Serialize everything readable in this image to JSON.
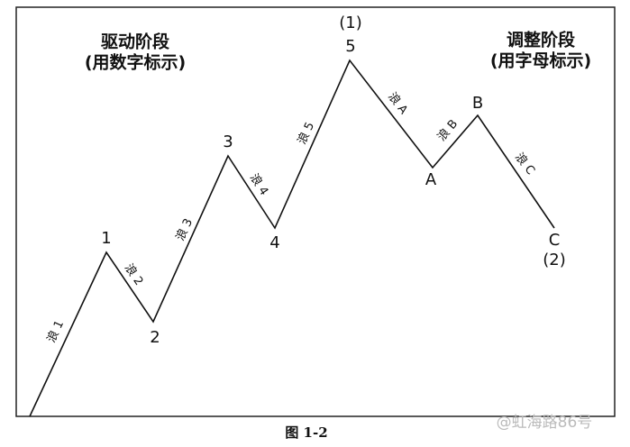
{
  "sections": [
    {
      "title": "驱动阶段",
      "note": "(用数字标示)"
    },
    {
      "title": "调整阶段",
      "note": "(用字母标示)"
    }
  ],
  "points": [
    {
      "label": "1"
    },
    {
      "label": "2"
    },
    {
      "label": "3"
    },
    {
      "label": "4"
    },
    {
      "label": "5",
      "degree": "(1)"
    },
    {
      "label": "A"
    },
    {
      "label": "B"
    },
    {
      "label": "C",
      "degree": "(2)"
    }
  ],
  "waves": [
    "浪 1",
    "浪 2",
    "浪 3",
    "浪 4",
    "浪 5",
    "浪 A",
    "浪 B",
    "浪 C"
  ],
  "caption": "图  1-2",
  "watermark": "@虹海路86号"
}
